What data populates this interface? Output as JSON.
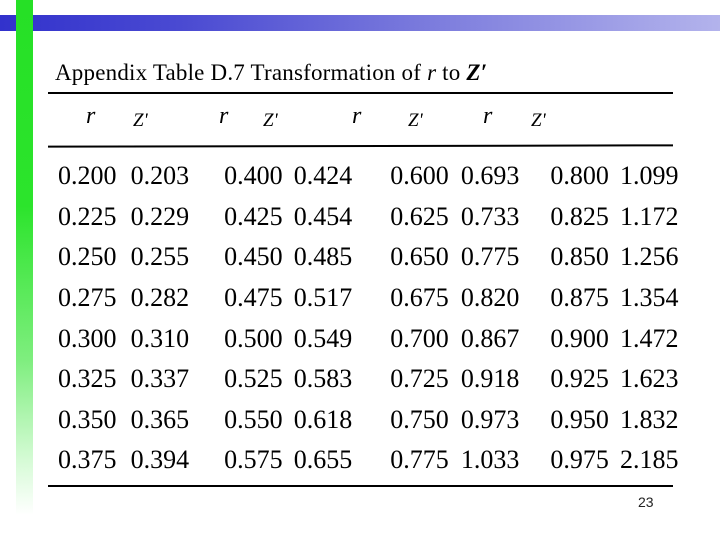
{
  "title": {
    "prefix": "Appendix Table D.7 Transformation of ",
    "var_r": "r",
    "middle": " to ",
    "var_z": "Z′"
  },
  "table": {
    "column_headers": [
      "r",
      "Z'",
      "r",
      "Z'",
      "r",
      "Z'",
      "r",
      "Z'"
    ],
    "rows": [
      [
        "0.200",
        "0.203",
        "0.400",
        "0.424",
        "0.600",
        "0.693",
        "0.800",
        "1.099"
      ],
      [
        "0.225",
        "0.229",
        "0.425",
        "0.454",
        "0.625",
        "0.733",
        "0.825",
        "1.172"
      ],
      [
        "0.250",
        "0.255",
        "0.450",
        "0.485",
        "0.650",
        "0.775",
        "0.850",
        "1.256"
      ],
      [
        "0.275",
        "0.282",
        "0.475",
        "0.517",
        "0.675",
        "0.820",
        "0.875",
        "1.354"
      ],
      [
        "0.300",
        "0.310",
        "0.500",
        "0.549",
        "0.700",
        "0.867",
        "0.900",
        "1.472"
      ],
      [
        "0.325",
        "0.337",
        "0.525",
        "0.583",
        "0.725",
        "0.918",
        "0.925",
        "1.623"
      ],
      [
        "0.350",
        "0.365",
        "0.550",
        "0.618",
        "0.750",
        "0.973",
        "0.950",
        "1.832"
      ],
      [
        "0.375",
        "0.394",
        "0.575",
        "0.655",
        "0.775",
        "1.033",
        "0.975",
        "2.185"
      ]
    ]
  },
  "footer": {
    "page_number": "23"
  },
  "decor": {
    "green_bar_color": "#2ce42c",
    "blue_bar_left_color": "#3232cc",
    "blue_bar_right_color": "#b3b3ec"
  }
}
